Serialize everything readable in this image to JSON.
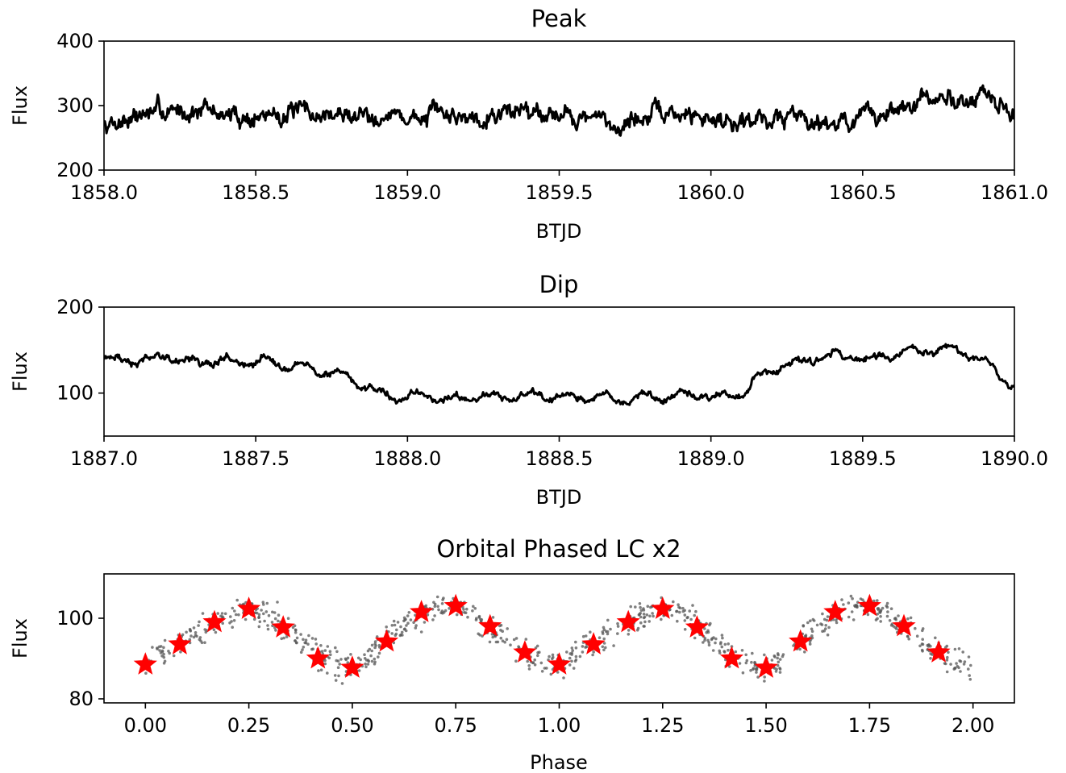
{
  "chart_data": [
    {
      "type": "line",
      "title": "Peak",
      "xlabel": "BTJD",
      "ylabel": "Flux",
      "xlim": [
        1858.0,
        1861.0
      ],
      "ylim": [
        200,
        400
      ],
      "xticks": [
        "1858.0",
        "1858.5",
        "1859.0",
        "1859.5",
        "1860.0",
        "1860.5",
        "1861.0"
      ],
      "yticks": [
        "200",
        "300",
        "400"
      ],
      "grid": false,
      "color": "#000000",
      "series": [
        {
          "x": [
            1858.0,
            1858.1,
            1858.2,
            1858.3,
            1858.4,
            1858.5,
            1858.6,
            1858.7,
            1858.8,
            1858.9,
            1859.0,
            1859.1,
            1859.2,
            1859.3,
            1859.4,
            1859.5,
            1859.6,
            1859.7,
            1859.8,
            1859.9,
            1860.0,
            1860.1,
            1860.2,
            1860.3,
            1860.4,
            1860.5,
            1860.6,
            1860.7,
            1860.8,
            1860.9,
            1861.0
          ],
          "values": [
            270,
            285,
            290,
            295,
            285,
            280,
            290,
            285,
            285,
            290,
            280,
            285,
            285,
            290,
            295,
            290,
            280,
            270,
            285,
            285,
            280,
            280,
            280,
            285,
            275,
            280,
            290,
            305,
            310,
            315,
            280
          ]
        }
      ]
    },
    {
      "type": "line",
      "title": "Dip",
      "xlabel": "BTJD",
      "ylabel": "Flux",
      "xlim": [
        1887.0,
        1890.0
      ],
      "ylim": [
        50,
        200
      ],
      "xticks": [
        "1887.0",
        "1887.5",
        "1888.0",
        "1888.5",
        "1889.0",
        "1889.5",
        "1890.0"
      ],
      "yticks": [
        "100",
        "200"
      ],
      "grid": false,
      "color": "#000000",
      "series": [
        {
          "x": [
            1887.0,
            1887.1,
            1887.2,
            1887.3,
            1887.4,
            1887.5,
            1887.6,
            1887.7,
            1887.8,
            1887.9,
            1888.0,
            1888.1,
            1888.2,
            1888.3,
            1888.4,
            1888.5,
            1888.6,
            1888.7,
            1888.8,
            1888.9,
            1889.0,
            1889.1,
            1889.2,
            1889.3,
            1889.4,
            1889.5,
            1889.6,
            1889.7,
            1889.8,
            1889.9,
            1890.0
          ],
          "values": [
            142,
            137,
            142,
            135,
            138,
            135,
            135,
            128,
            120,
            100,
            95,
            95,
            93,
            95,
            95,
            94,
            95,
            94,
            95,
            95,
            95,
            100,
            130,
            138,
            145,
            140,
            145,
            150,
            150,
            135,
            110
          ]
        }
      ]
    },
    {
      "type": "scatter",
      "title": "Orbital Phased LC x2",
      "xlabel": "Phase",
      "ylabel": "Flux",
      "xlim": [
        -0.1,
        2.1
      ],
      "ylim": [
        79,
        111
      ],
      "xticks": [
        "0.00",
        "0.25",
        "0.50",
        "0.75",
        "1.00",
        "1.25",
        "1.50",
        "1.75",
        "2.00"
      ],
      "yticks": [
        "80",
        "100"
      ],
      "grid": false,
      "series": [
        {
          "marker": "dot",
          "color": "#555555",
          "x": [
            0.0,
            0.02,
            0.04,
            0.06,
            0.08,
            0.1,
            0.12,
            0.14,
            0.16,
            0.18,
            0.2,
            0.22,
            0.24,
            0.26,
            0.28,
            0.3,
            0.32,
            0.34,
            0.36,
            0.38,
            0.4,
            0.42,
            0.44,
            0.46,
            0.48,
            0.5,
            0.52,
            0.54,
            0.56,
            0.58,
            0.6,
            0.62,
            0.64,
            0.66,
            0.68,
            0.7,
            0.72,
            0.74,
            0.76,
            0.78,
            0.8,
            0.82,
            0.84,
            0.86,
            0.88,
            0.9,
            0.92,
            0.94,
            0.96,
            0.98
          ],
          "values": [
            88.5,
            89.5,
            90.8,
            92.2,
            93.6,
            95.0,
            96.3,
            97.5,
            98.6,
            99.6,
            100.5,
            101.4,
            102.0,
            102.4,
            102.1,
            100.8,
            99.2,
            97.6,
            95.8,
            93.9,
            92.0,
            90.5,
            89.5,
            88.6,
            88.0,
            87.8,
            88.8,
            90.4,
            92.2,
            94.0,
            95.8,
            97.6,
            99.3,
            100.6,
            101.6,
            102.4,
            102.9,
            103.1,
            102.8,
            101.6,
            100.2,
            98.6,
            97.0,
            95.4,
            93.8,
            92.4,
            91.2,
            90.2,
            89.4,
            88.9
          ]
        },
        {
          "marker": "star",
          "color": "#ff0000",
          "x": [
            0.0,
            0.083,
            0.167,
            0.25,
            0.333,
            0.417,
            0.5,
            0.583,
            0.667,
            0.75,
            0.833,
            0.917,
            1.0,
            1.083,
            1.167,
            1.25,
            1.333,
            1.417,
            1.5,
            1.583,
            1.667,
            1.75,
            1.833,
            1.917
          ],
          "values": [
            88.5,
            93.5,
            99.0,
            102.3,
            97.7,
            90.0,
            87.7,
            94.2,
            101.5,
            103.0,
            98.0,
            91.5,
            88.5,
            93.5,
            99.0,
            102.3,
            97.7,
            90.0,
            87.7,
            94.2,
            101.5,
            103.0,
            98.0,
            91.5
          ]
        }
      ]
    }
  ]
}
